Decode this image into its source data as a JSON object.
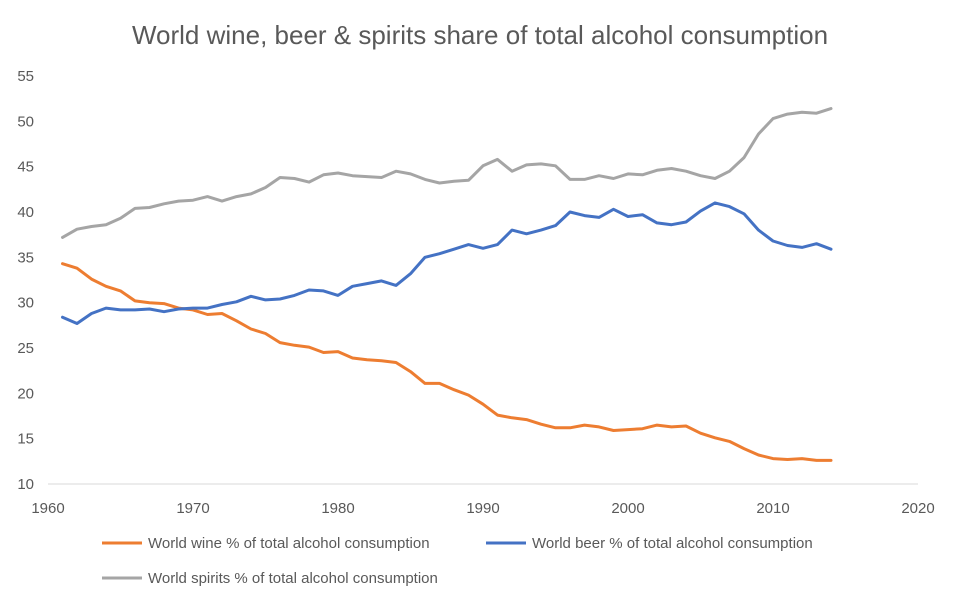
{
  "chart_data": {
    "type": "line",
    "title": "World wine, beer & spirits share of total alcohol consumption",
    "xlabel": "",
    "ylabel": "",
    "xlim": [
      1960,
      2020
    ],
    "ylim": [
      10,
      55
    ],
    "x_ticks": [
      1960,
      1970,
      1980,
      1990,
      2000,
      2010,
      2020
    ],
    "y_ticks": [
      10,
      15,
      20,
      25,
      30,
      35,
      40,
      45,
      50,
      55
    ],
    "grid": false,
    "legend_position": "bottom",
    "x": [
      1961,
      1962,
      1963,
      1964,
      1965,
      1966,
      1967,
      1968,
      1969,
      1970,
      1971,
      1972,
      1973,
      1974,
      1975,
      1976,
      1977,
      1978,
      1979,
      1980,
      1981,
      1982,
      1983,
      1984,
      1985,
      1986,
      1987,
      1988,
      1989,
      1990,
      1991,
      1992,
      1993,
      1994,
      1995,
      1996,
      1997,
      1998,
      1999,
      2000,
      2001,
      2002,
      2003,
      2004,
      2005,
      2006,
      2007,
      2008,
      2009,
      2010,
      2011,
      2012,
      2013,
      2014
    ],
    "series": [
      {
        "name": "World wine % of total alcohol consumption",
        "color": "#ed7d31",
        "values": [
          34.3,
          33.8,
          32.6,
          31.8,
          31.3,
          30.2,
          30.0,
          29.9,
          29.4,
          29.2,
          28.7,
          28.8,
          28.0,
          27.1,
          26.6,
          25.6,
          25.3,
          25.1,
          24.5,
          24.6,
          23.9,
          23.7,
          23.6,
          23.4,
          22.4,
          21.1,
          21.1,
          20.4,
          19.8,
          18.8,
          17.6,
          17.3,
          17.1,
          16.6,
          16.2,
          16.2,
          16.5,
          16.3,
          15.9,
          16.0,
          16.1,
          16.5,
          16.3,
          16.4,
          15.6,
          15.1,
          14.7,
          13.9,
          13.2,
          12.8,
          12.7,
          12.8,
          12.6,
          12.6
        ]
      },
      {
        "name": "World beer % of total alcohol consumption",
        "color": "#4472c4",
        "values": [
          28.4,
          27.7,
          28.8,
          29.4,
          29.2,
          29.2,
          29.3,
          29.0,
          29.3,
          29.4,
          29.4,
          29.8,
          30.1,
          30.7,
          30.3,
          30.4,
          30.8,
          31.4,
          31.3,
          30.8,
          31.8,
          32.1,
          32.4,
          31.9,
          33.2,
          35.0,
          35.4,
          35.9,
          36.4,
          36.0,
          36.4,
          38.0,
          37.6,
          38.0,
          38.5,
          40.0,
          39.6,
          39.4,
          40.3,
          39.5,
          39.7,
          38.8,
          38.6,
          38.9,
          40.1,
          41.0,
          40.6,
          39.8,
          38.0,
          36.8,
          36.3,
          36.1,
          36.5,
          35.9
        ]
      },
      {
        "name": "World spirits % of total alcohol consumption",
        "color": "#a5a5a5",
        "values": [
          37.2,
          38.1,
          38.4,
          38.6,
          39.3,
          40.4,
          40.5,
          40.9,
          41.2,
          41.3,
          41.7,
          41.2,
          41.7,
          42.0,
          42.7,
          43.8,
          43.7,
          43.3,
          44.1,
          44.3,
          44.0,
          43.9,
          43.8,
          44.5,
          44.2,
          43.6,
          43.2,
          43.4,
          43.5,
          45.1,
          45.8,
          44.5,
          45.2,
          45.3,
          45.1,
          43.6,
          43.6,
          44.0,
          43.7,
          44.2,
          44.1,
          44.6,
          44.8,
          44.5,
          44.0,
          43.7,
          44.5,
          46.0,
          48.6,
          50.3,
          50.8,
          51.0,
          50.9,
          51.4
        ]
      }
    ]
  }
}
